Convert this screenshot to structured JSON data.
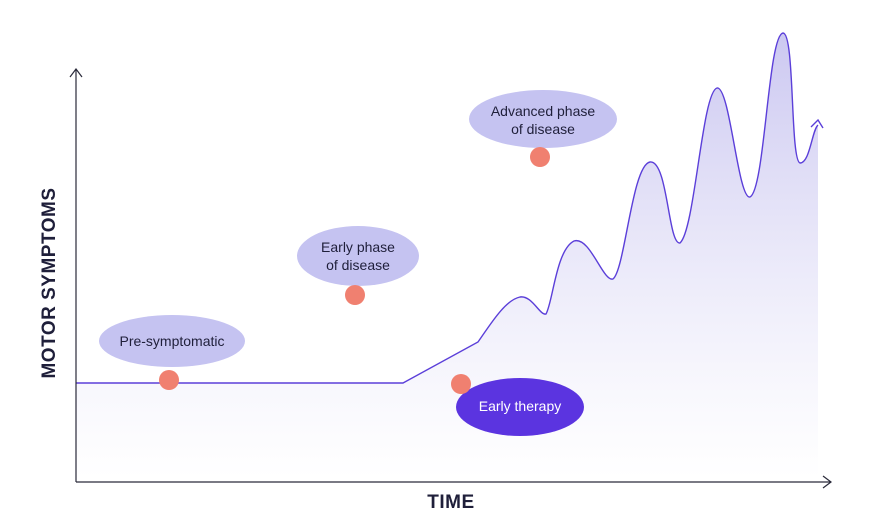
{
  "axes": {
    "x_label": "TIME",
    "y_label": "MOTOR SYMPTOMS"
  },
  "stages": [
    {
      "id": "pre_symptomatic",
      "line1": "Pre-symptomatic",
      "line2": ""
    },
    {
      "id": "early_phase",
      "line1": "Early phase",
      "line2": "of disease"
    },
    {
      "id": "advanced_phase",
      "line1": "Advanced phase",
      "line2": "of disease"
    },
    {
      "id": "early_therapy",
      "line1": "Early therapy",
      "line2": ""
    }
  ],
  "colors": {
    "curve": "#5b3fd9",
    "area_top": "#c9c5f0",
    "area_bottom": "#ffffff",
    "bubble": "#c5c3f1",
    "therapy_bubble": "#5b34e0",
    "marker": "#f08070",
    "axis": "#2a2a3a",
    "text": "#1f1f3a"
  }
}
